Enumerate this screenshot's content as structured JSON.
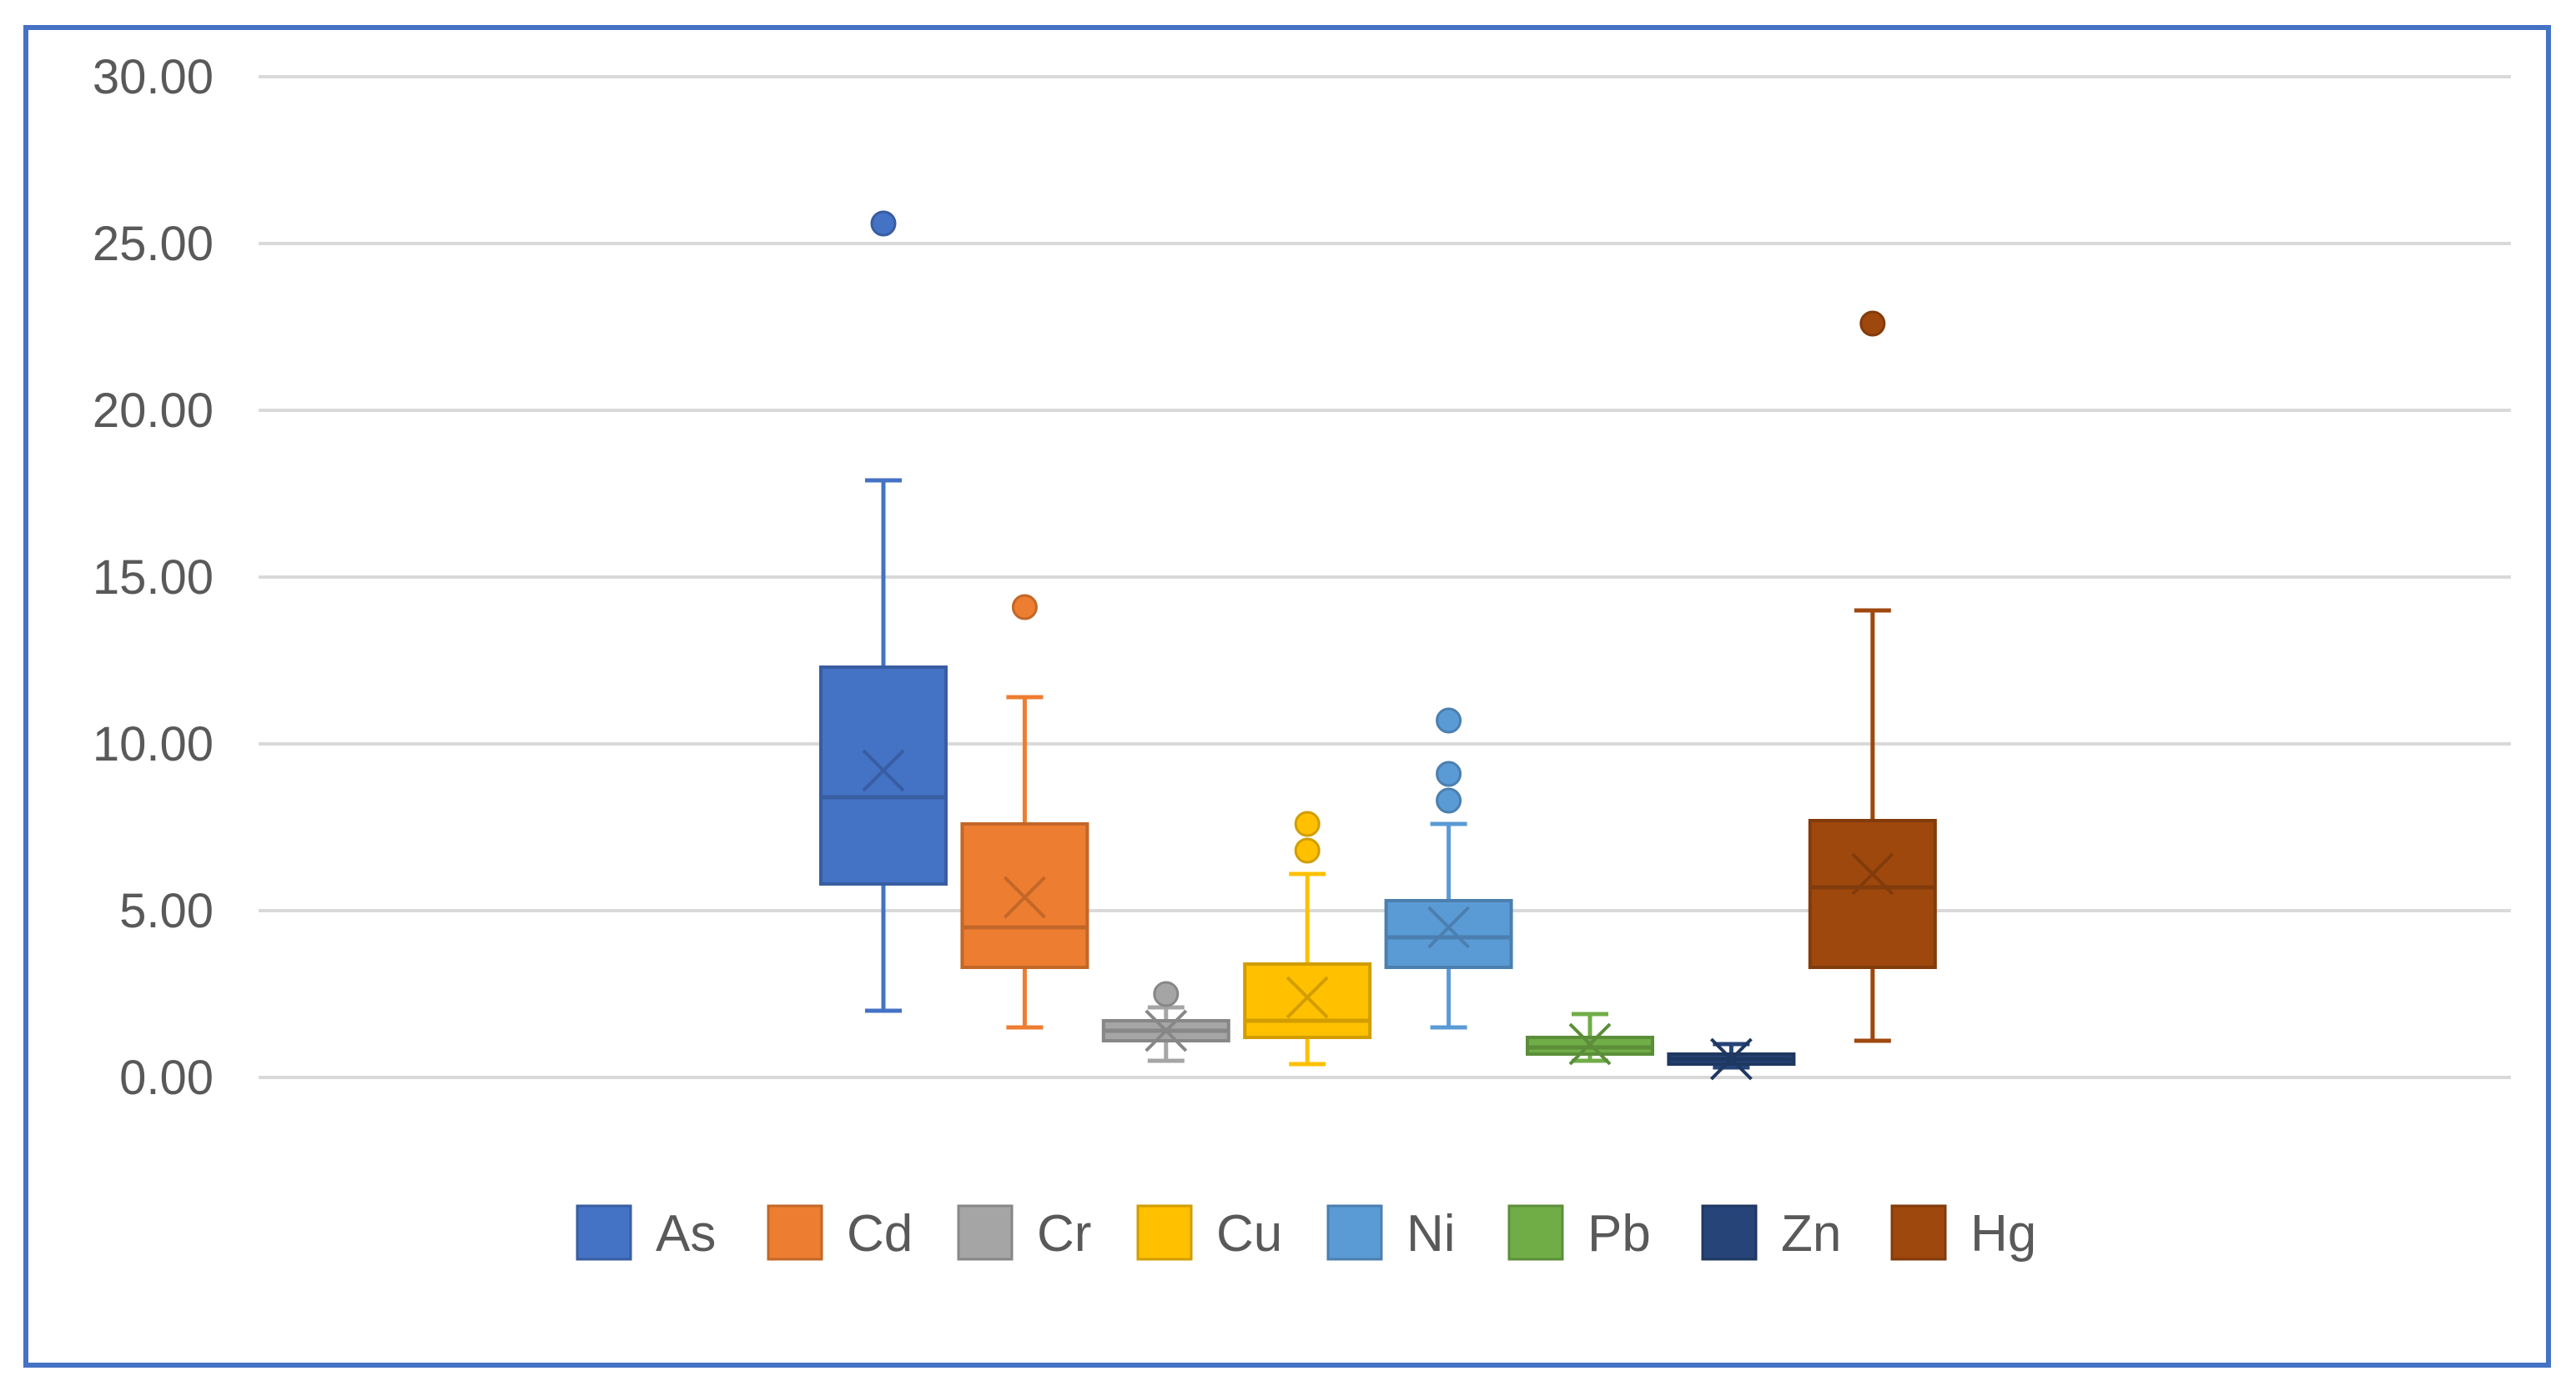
{
  "chart_data": {
    "type": "box",
    "title": "",
    "xlabel": "",
    "ylabel": "",
    "ylim": [
      0,
      30
    ],
    "y_ticks": [
      "0.00",
      "5.00",
      "10.00",
      "15.00",
      "20.00",
      "25.00",
      "30.00"
    ],
    "grid": true,
    "legend_position": "bottom",
    "series": [
      {
        "name": "As",
        "color": "#4472c4",
        "min": 2.0,
        "q1": 5.8,
        "median": 8.4,
        "q3": 12.3,
        "max": 17.9,
        "mean": 9.2,
        "outliers": [
          25.6
        ]
      },
      {
        "name": "Cd",
        "color": "#ed7d31",
        "min": 1.5,
        "q1": 3.3,
        "median": 4.5,
        "q3": 7.6,
        "max": 11.4,
        "mean": 5.4,
        "outliers": [
          14.1
        ]
      },
      {
        "name": "Cr",
        "color": "#a5a5a5",
        "min": 0.5,
        "q1": 1.1,
        "median": 1.4,
        "q3": 1.7,
        "max": 2.1,
        "mean": 1.4,
        "outliers": [
          2.5
        ]
      },
      {
        "name": "Cu",
        "color": "#ffc000",
        "min": 0.4,
        "q1": 1.2,
        "median": 1.7,
        "q3": 3.4,
        "max": 6.1,
        "mean": 2.4,
        "outliers": [
          6.8,
          7.6
        ]
      },
      {
        "name": "Ni",
        "color": "#5b9bd5",
        "min": 1.5,
        "q1": 3.3,
        "median": 4.2,
        "q3": 5.3,
        "max": 7.6,
        "mean": 4.5,
        "outliers": [
          8.3,
          9.1,
          10.7
        ]
      },
      {
        "name": "Pb",
        "color": "#70ad47",
        "min": 0.5,
        "q1": 0.7,
        "median": 0.9,
        "q3": 1.2,
        "max": 1.9,
        "mean": 1.0,
        "outliers": []
      },
      {
        "name": "Zn",
        "color": "#264478",
        "min": 0.3,
        "q1": 0.4,
        "median": 0.55,
        "q3": 0.7,
        "max": 1.0,
        "mean": 0.55,
        "outliers": []
      },
      {
        "name": "Hg",
        "color": "#9e480e",
        "min": 1.1,
        "q1": 3.3,
        "median": 5.7,
        "q3": 7.7,
        "max": 14.0,
        "mean": 6.1,
        "outliers": [
          22.6
        ]
      }
    ]
  }
}
